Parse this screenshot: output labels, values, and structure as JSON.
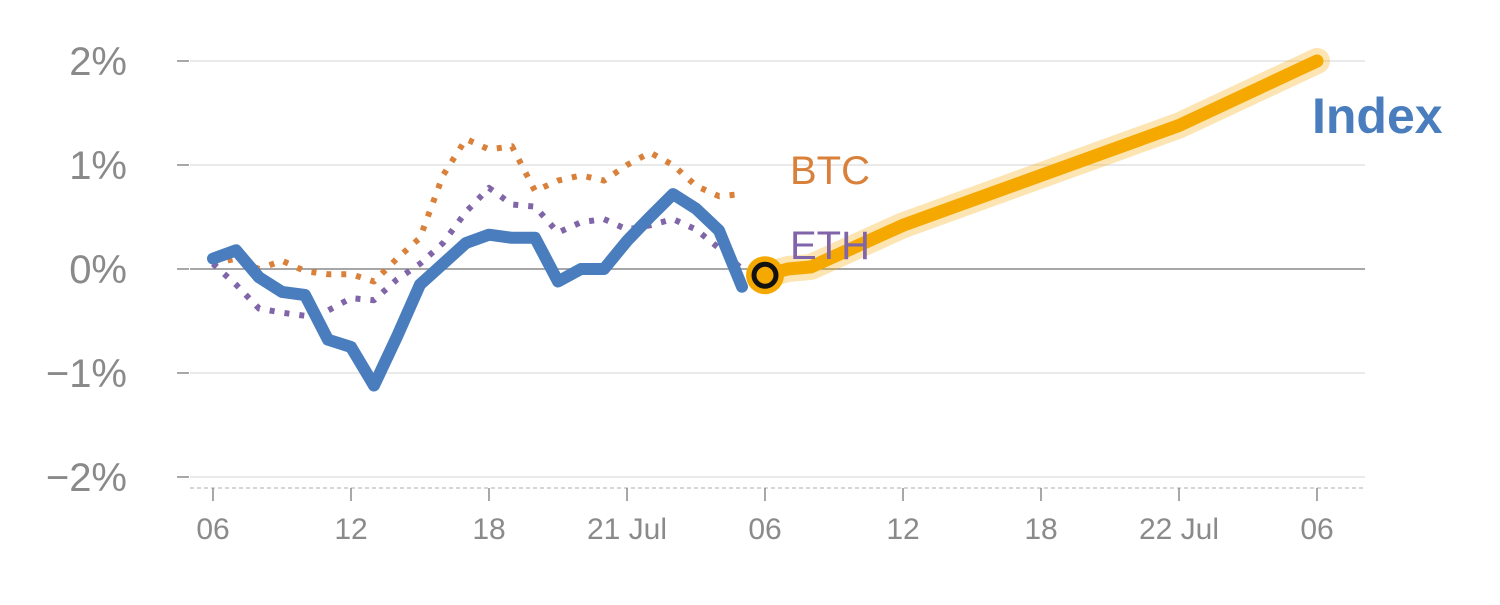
{
  "chart_data": {
    "type": "line",
    "title": "",
    "xlabel": "",
    "ylabel": "",
    "ylim": [
      -2,
      2
    ],
    "y_ticks": [
      {
        "value": 2,
        "label": "2%"
      },
      {
        "value": 1,
        "label": "1%"
      },
      {
        "value": 0,
        "label": "0%"
      },
      {
        "value": -1,
        "label": "−1%"
      },
      {
        "value": -2,
        "label": "−2%"
      }
    ],
    "x_ticks": [
      {
        "x": 0,
        "label": "06"
      },
      {
        "x": 6,
        "label": "12"
      },
      {
        "x": 12,
        "label": "18"
      },
      {
        "x": 18,
        "label": "21 Jul"
      },
      {
        "x": 24,
        "label": "06"
      },
      {
        "x": 30,
        "label": "12"
      },
      {
        "x": 36,
        "label": "18"
      },
      {
        "x": 42,
        "label": "22 Jul"
      },
      {
        "x": 48,
        "label": "06"
      }
    ],
    "grid": true,
    "series": [
      {
        "name": "BTC",
        "style": "dotted",
        "color": "#d9813a",
        "x": [
          0,
          1,
          2,
          3,
          4,
          5,
          6,
          7,
          8,
          9,
          10,
          11,
          12,
          13,
          14,
          15,
          16,
          17,
          18,
          19,
          20,
          21,
          22,
          23,
          24
        ],
        "values": [
          0.05,
          0.1,
          0.0,
          0.08,
          -0.02,
          -0.05,
          -0.05,
          -0.12,
          0.1,
          0.3,
          0.9,
          1.25,
          1.15,
          1.18,
          0.75,
          0.85,
          0.9,
          0.85,
          1.0,
          1.12,
          1.0,
          0.8,
          0.7,
          0.72,
          null
        ]
      },
      {
        "name": "ETH",
        "style": "dotted",
        "color": "#8066a8",
        "x": [
          0,
          1,
          2,
          3,
          4,
          5,
          6,
          7,
          8,
          9,
          10,
          11,
          12,
          13,
          14,
          15,
          16,
          17,
          18,
          19,
          20,
          21,
          22,
          23,
          24
        ],
        "values": [
          0.05,
          -0.15,
          -0.38,
          -0.42,
          -0.45,
          -0.4,
          -0.28,
          -0.3,
          -0.1,
          0.05,
          0.25,
          0.55,
          0.78,
          0.62,
          0.6,
          0.35,
          0.45,
          0.48,
          0.38,
          0.42,
          0.48,
          0.38,
          0.2,
          0.0,
          null
        ]
      },
      {
        "name": "Index",
        "style": "solid",
        "color": "#4a7dbd",
        "x": [
          0,
          1,
          2,
          3,
          4,
          5,
          6,
          7,
          8,
          9,
          10,
          11,
          12,
          13,
          14,
          15,
          16,
          17,
          18,
          19,
          20,
          21,
          22,
          23
        ],
        "values": [
          0.1,
          0.18,
          -0.08,
          -0.22,
          -0.25,
          -0.68,
          -0.75,
          -1.12,
          -0.65,
          -0.15,
          0.05,
          0.25,
          0.33,
          0.3,
          0.3,
          -0.12,
          0.0,
          0.0,
          0.27,
          0.5,
          0.72,
          0.58,
          0.37,
          -0.17
        ]
      },
      {
        "name": "",
        "style": "forecast",
        "color": "#f5a800",
        "x": [
          24,
          25,
          26,
          30,
          36,
          42,
          48
        ],
        "values": [
          -0.06,
          0.0,
          0.02,
          0.42,
          0.9,
          1.38,
          2.0
        ]
      }
    ],
    "series_labels": [
      {
        "series": "BTC",
        "text": "BTC",
        "color": "#d9813a"
      },
      {
        "series": "ETH",
        "text": "ETH",
        "color": "#8066a8"
      },
      {
        "series": "Index",
        "text": "Index",
        "color": "#4a7dbd"
      }
    ],
    "marker": {
      "x": 24,
      "value": -0.06,
      "fill": "#f5a800",
      "stroke": "#111111"
    }
  }
}
